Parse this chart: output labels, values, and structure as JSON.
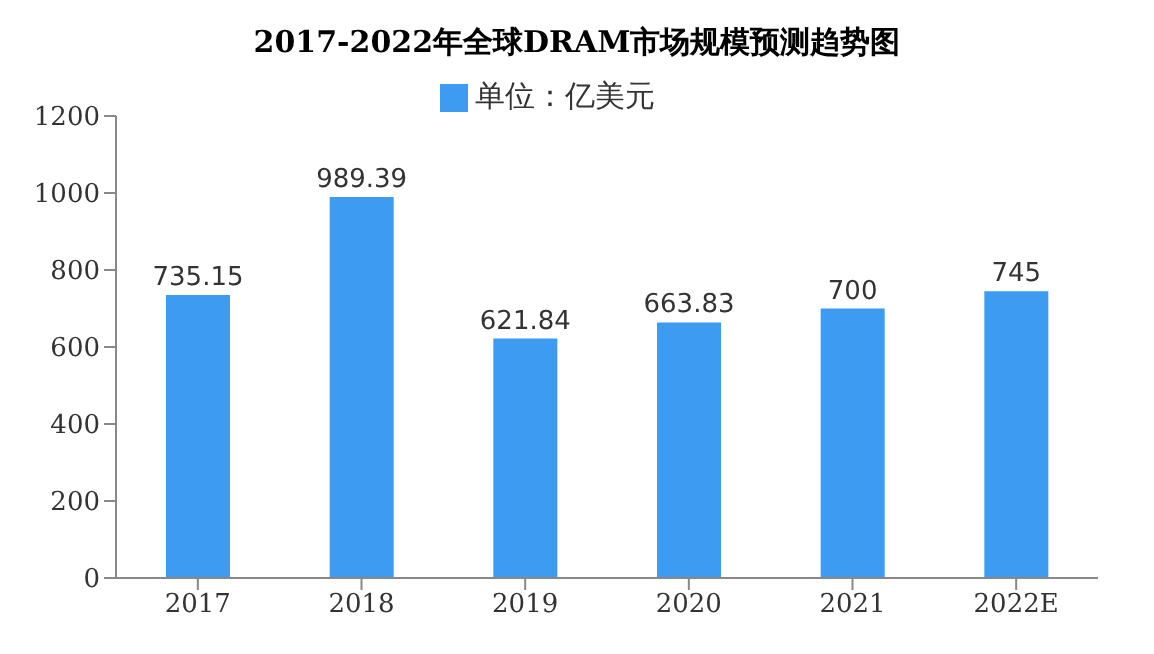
{
  "chart_data": {
    "type": "bar",
    "title": "2017-2022年全球DRAM市场规模预测趋势图",
    "categories": [
      "2017",
      "2018",
      "2019",
      "2020",
      "2021",
      "2022E"
    ],
    "series": [
      {
        "name": "单位：亿美元",
        "color": "#3d9bf2",
        "values": [
          735.15,
          989.39,
          621.84,
          663.83,
          700,
          745
        ]
      }
    ],
    "ylim": [
      0,
      1200
    ],
    "yticks": [
      0,
      200,
      400,
      600,
      800,
      1000,
      1200
    ],
    "grid": false,
    "legend": "top",
    "data_labels": true
  }
}
